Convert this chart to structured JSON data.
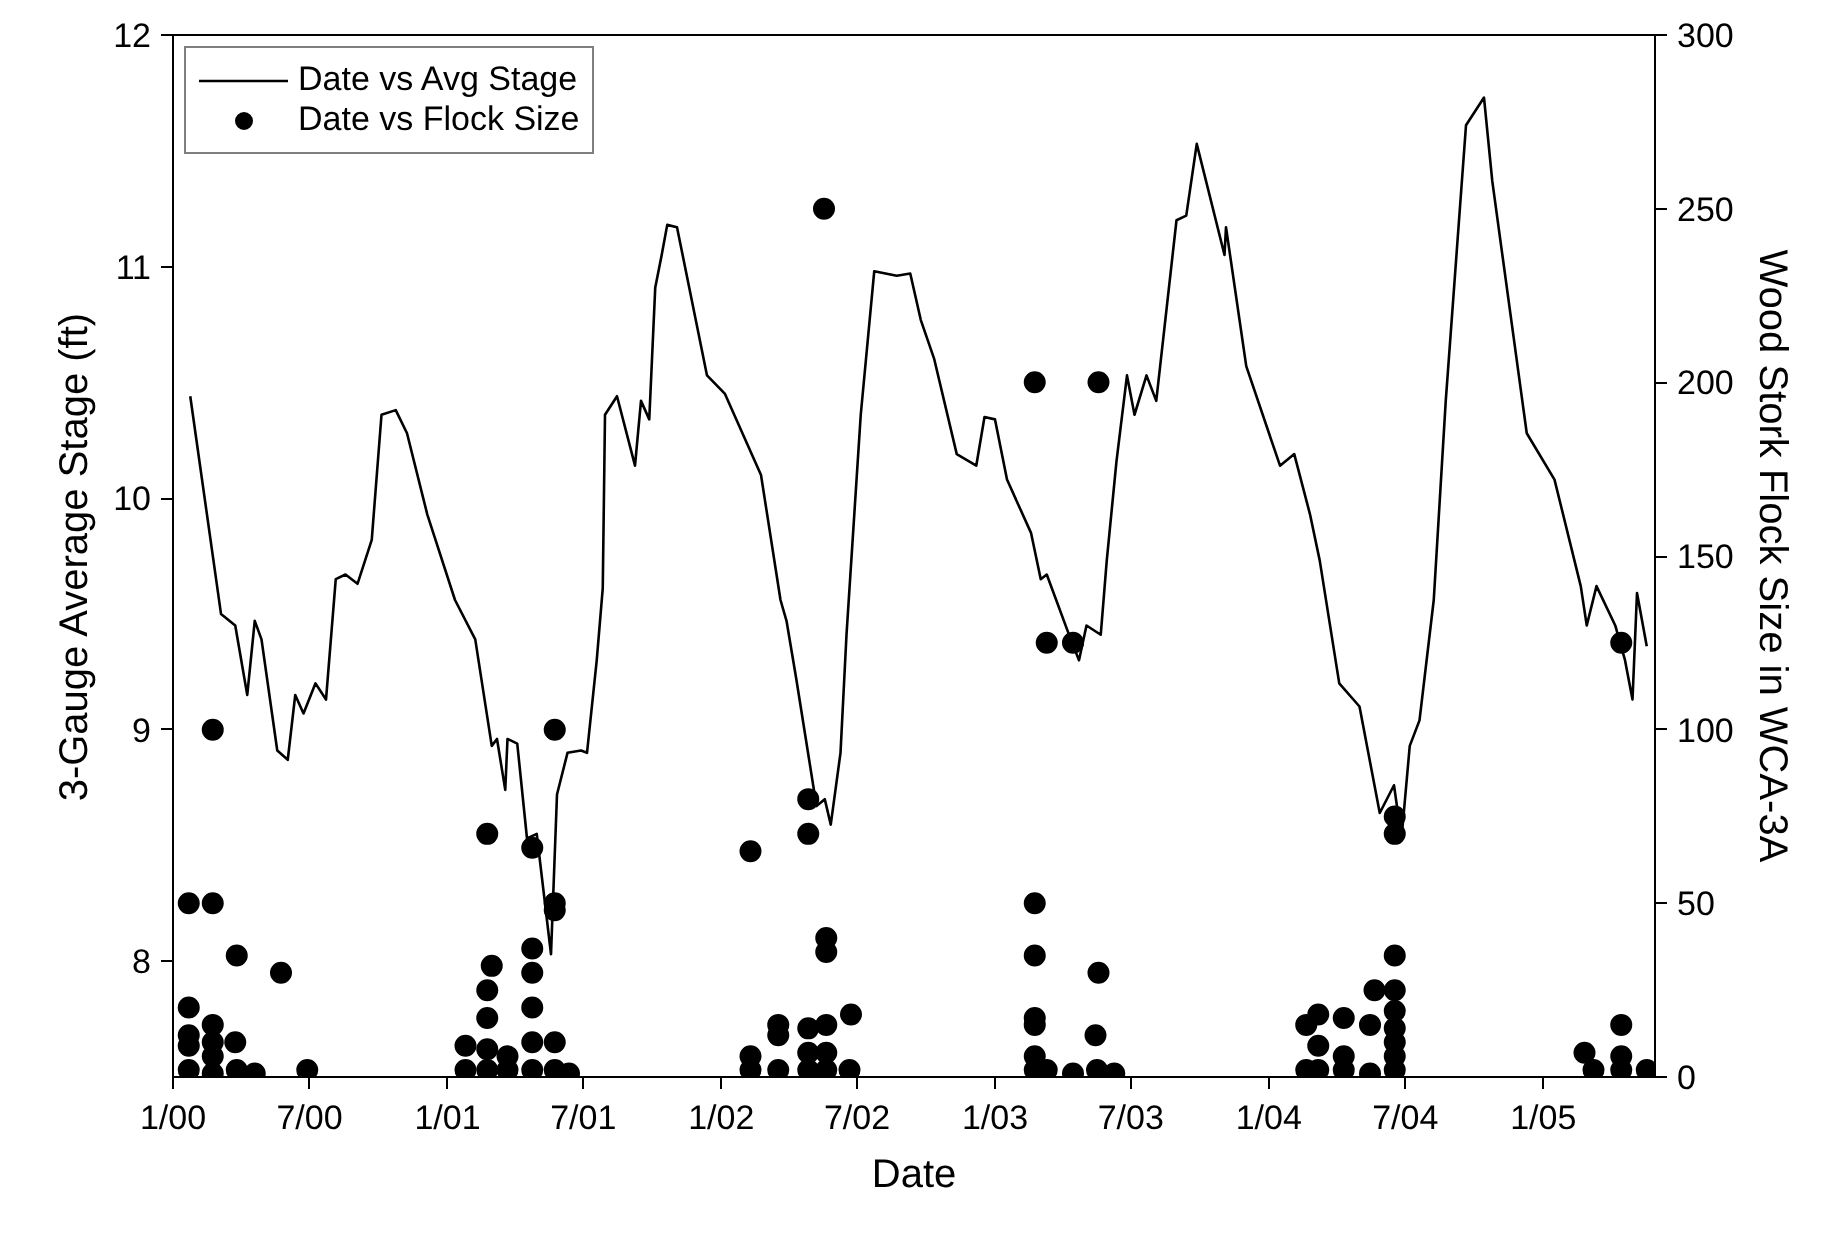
{
  "chart_data": {
    "type": "line",
    "xlabel": "Date",
    "ylabel": "3-Gauge Average Stage (ft)",
    "y2label": "Wood Stork Flock Size in WCA-3A",
    "xlim": [
      "2000-01-01",
      "2005-05-30"
    ],
    "ylim": [
      7.5,
      12
    ],
    "y2lim": [
      0,
      300
    ],
    "xticks": [
      {
        "value": "2000-01-01",
        "label": "1/00"
      },
      {
        "value": "2000-07-01",
        "label": "7/00"
      },
      {
        "value": "2001-01-01",
        "label": "1/01"
      },
      {
        "value": "2001-07-01",
        "label": "7/01"
      },
      {
        "value": "2002-01-01",
        "label": "1/02"
      },
      {
        "value": "2002-07-01",
        "label": "7/02"
      },
      {
        "value": "2003-01-01",
        "label": "1/03"
      },
      {
        "value": "2003-07-01",
        "label": "7/03"
      },
      {
        "value": "2004-01-01",
        "label": "1/04"
      },
      {
        "value": "2004-07-01",
        "label": "7/04"
      },
      {
        "value": "2005-01-01",
        "label": "1/05"
      }
    ],
    "yticks": [
      8,
      9,
      10,
      11,
      12
    ],
    "y2ticks": [
      0,
      50,
      100,
      150,
      200,
      250,
      300
    ],
    "grid": false,
    "legend": "top left",
    "series": [
      {
        "name": "Date vs Avg Stage",
        "color": "#000000",
        "marker": "none",
        "line_style": "solid",
        "x": [
          "2000-01-24",
          "2000-03-05",
          "2000-03-24",
          "2000-04-09",
          "2000-04-19",
          "2000-04-28",
          "2000-05-19",
          "2000-06-02",
          "2000-06-12",
          "2000-06-23",
          "2000-07-09",
          "2000-07-23",
          "2000-08-05",
          "2000-08-18",
          "2000-09-03",
          "2000-09-22",
          "2000-10-05",
          "2000-10-24",
          "2000-11-08",
          "2000-12-05",
          "2001-01-11",
          "2001-02-07",
          "2001-03-01",
          "2001-03-08",
          "2001-03-19",
          "2001-03-22",
          "2001-04-04",
          "2001-04-17",
          "2001-04-30",
          "2001-05-19",
          "2001-05-27",
          "2001-06-10",
          "2001-06-28",
          "2001-07-06",
          "2001-07-19",
          "2001-07-27",
          "2001-07-30",
          "2001-08-15",
          "2001-09-08",
          "2001-09-16",
          "2001-09-27",
          "2001-10-05",
          "2001-10-13",
          "2001-10-21",
          "2001-11-03",
          "2001-12-13",
          "2002-01-06",
          "2002-02-23",
          "2002-03-21",
          "2002-03-29",
          "2002-04-11",
          "2002-05-08",
          "2002-05-19",
          "2002-05-27",
          "2002-06-09",
          "2002-06-17",
          "2002-07-06",
          "2002-07-24",
          "2002-08-23",
          "2002-09-10",
          "2002-09-24",
          "2002-10-12",
          "2002-11-11",
          "2002-12-07",
          "2002-12-18",
          "2003-01-01",
          "2003-01-17",
          "2003-02-18",
          "2003-03-03",
          "2003-03-11",
          "2003-04-12",
          "2003-04-23",
          "2003-05-03",
          "2003-05-22",
          "2003-05-30",
          "2003-06-12",
          "2003-06-26",
          "2003-07-06",
          "2003-07-22",
          "2003-08-04",
          "2003-08-31",
          "2003-09-13",
          "2003-09-27",
          "2003-11-03",
          "2003-11-05",
          "2003-12-02",
          "2004-01-16",
          "2004-02-04",
          "2004-02-25",
          "2004-03-09",
          "2004-04-04",
          "2004-05-01",
          "2004-05-28",
          "2004-06-16",
          "2004-06-26",
          "2004-07-07",
          "2004-07-20",
          "2004-08-08",
          "2004-08-24",
          "2004-09-20",
          "2004-10-14",
          "2004-10-25",
          "2004-12-10",
          "2005-01-16",
          "2005-02-20",
          "2005-02-28",
          "2005-03-13",
          "2005-04-07",
          "2005-04-20",
          "2005-04-30",
          "2005-05-06",
          "2005-05-19"
        ],
        "values": [
          10.44,
          9.5,
          9.45,
          9.15,
          9.47,
          9.39,
          8.91,
          8.87,
          9.15,
          9.07,
          9.2,
          9.13,
          9.65,
          9.67,
          9.63,
          9.82,
          10.36,
          10.38,
          10.28,
          9.93,
          9.56,
          9.39,
          8.93,
          8.96,
          8.74,
          8.96,
          8.94,
          8.53,
          8.55,
          8.03,
          8.72,
          8.9,
          8.91,
          8.9,
          9.3,
          9.61,
          10.36,
          10.44,
          10.14,
          10.42,
          10.34,
          10.91,
          11.04,
          11.18,
          11.17,
          10.53,
          10.45,
          10.1,
          9.56,
          9.47,
          9.22,
          8.67,
          8.7,
          8.59,
          8.9,
          9.41,
          10.36,
          10.98,
          10.96,
          10.97,
          10.77,
          10.6,
          10.19,
          10.14,
          10.35,
          10.34,
          10.08,
          9.85,
          9.65,
          9.67,
          9.39,
          9.3,
          9.45,
          9.41,
          9.73,
          10.16,
          10.53,
          10.36,
          10.53,
          10.42,
          11.2,
          11.22,
          11.53,
          11.05,
          11.17,
          10.57,
          10.14,
          10.19,
          9.93,
          9.73,
          9.2,
          9.1,
          8.64,
          8.76,
          8.53,
          8.93,
          9.04,
          9.56,
          10.42,
          11.61,
          11.73,
          11.37,
          10.28,
          10.08,
          9.62,
          9.45,
          9.62,
          9.45,
          9.3,
          9.13,
          9.59,
          9.36
        ]
      },
      {
        "name": "Date vs Flock Size",
        "type": "scatter",
        "axis": "y2",
        "color": "#000000",
        "marker": "circle",
        "x": [
          "2000-01-22",
          "2000-01-22",
          "2000-01-22",
          "2000-01-22",
          "2000-01-22",
          "2000-02-23",
          "2000-02-23",
          "2000-02-23",
          "2000-02-23",
          "2000-02-23",
          "2000-02-23",
          "2000-03-26",
          "2000-03-24",
          "2000-03-26",
          "2000-04-19",
          "2000-05-24",
          "2000-06-28",
          "2001-01-25",
          "2001-01-25",
          "2001-02-23",
          "2001-02-23",
          "2001-02-23",
          "2001-02-23",
          "2001-02-23",
          "2001-03-01",
          "2001-03-22",
          "2001-03-22",
          "2001-04-24",
          "2001-04-24",
          "2001-04-24",
          "2001-04-24",
          "2001-04-24",
          "2001-04-24",
          "2001-05-24",
          "2001-05-24",
          "2001-05-24",
          "2001-05-24",
          "2001-05-24",
          "2001-06-12",
          "2002-02-09",
          "2002-02-09",
          "2002-02-09",
          "2002-03-18",
          "2002-03-18",
          "2002-03-18",
          "2002-04-27",
          "2002-04-27",
          "2002-04-27",
          "2002-04-27",
          "2002-04-27",
          "2002-05-21",
          "2002-05-21",
          "2002-05-21",
          "2002-05-21",
          "2002-05-21",
          "2002-06-23",
          "2002-06-21",
          "2002-05-18",
          "2003-02-23",
          "2003-02-23",
          "2003-02-23",
          "2003-02-23",
          "2003-02-23",
          "2003-02-23",
          "2003-03-11",
          "2003-03-11",
          "2003-04-15",
          "2003-04-15",
          "2003-02-23",
          "2003-05-19",
          "2003-05-19",
          "2003-05-15",
          "2003-05-17",
          "2003-06-09",
          "2004-02-20",
          "2004-02-20",
          "2004-03-07",
          "2004-03-07",
          "2004-03-07",
          "2004-04-10",
          "2004-04-10",
          "2004-04-10",
          "2004-05-15",
          "2004-05-15",
          "2004-05-21",
          "2004-06-17",
          "2004-06-17",
          "2004-06-17",
          "2004-06-17",
          "2004-06-17",
          "2004-06-17",
          "2004-06-17",
          "2004-06-17",
          "2004-06-17",
          "2005-02-25",
          "2005-03-09",
          "2005-04-15",
          "2005-04-15",
          "2005-04-15",
          "2005-04-15",
          "2005-05-19"
        ],
        "values": [
          50,
          20,
          12,
          9,
          2,
          100,
          50,
          15,
          10,
          6,
          1,
          35,
          10,
          2,
          1,
          30,
          2,
          9,
          2,
          70,
          25,
          17,
          8,
          2,
          32,
          6,
          2,
          66,
          37,
          30,
          20,
          10,
          2,
          100,
          50,
          48,
          10,
          2,
          1,
          65,
          6,
          2,
          15,
          12,
          2,
          80,
          70,
          14,
          7,
          2,
          40,
          36,
          15,
          7,
          2,
          18,
          2,
          250,
          50,
          35,
          17,
          15,
          6,
          2,
          2,
          125,
          125,
          1,
          200,
          200,
          30,
          12,
          2,
          1,
          15,
          2,
          18,
          9,
          2,
          17,
          6,
          2,
          15,
          1,
          25,
          35,
          25,
          19,
          14,
          10,
          6,
          2,
          70,
          75,
          7,
          2,
          15,
          6,
          2,
          125,
          2
        ]
      }
    ]
  }
}
